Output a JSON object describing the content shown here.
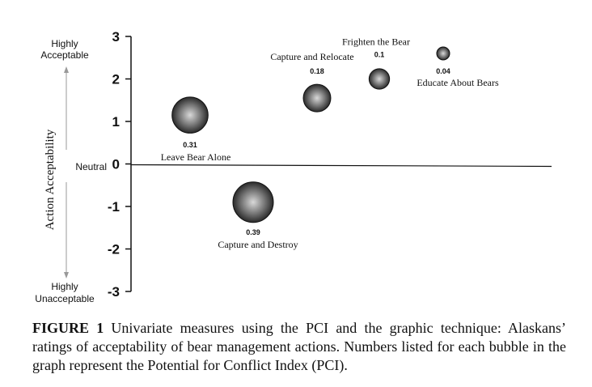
{
  "chart_data": {
    "type": "bubble",
    "title": "",
    "ylabel": "Action Acceptability",
    "ylim": [
      -3,
      3
    ],
    "yticks": [
      3,
      2,
      1,
      0,
      -1,
      -2,
      -3
    ],
    "ytick_labels": [
      "3",
      "2",
      "1",
      "0",
      "-1",
      "-2",
      "-3"
    ],
    "y_extremes": {
      "top_line1": "Highly",
      "top_line2": "Acceptable",
      "neutral": "Neutral",
      "bottom_line1": "Highly",
      "bottom_line2": "Unacceptable"
    },
    "points": [
      {
        "name": "Leave Bear Alone",
        "pci": 0.31,
        "pci_label": "0.31",
        "mean": 1.15
      },
      {
        "name": "Capture and Destroy",
        "pci": 0.39,
        "pci_label": "0.39",
        "mean": -0.9
      },
      {
        "name": "Capture and Relocate",
        "pci": 0.18,
        "pci_label": "0.18",
        "mean": 1.55
      },
      {
        "name": "Frighten the Bear",
        "pci": 0.1,
        "pci_label": "0.1",
        "mean": 2.0
      },
      {
        "name": "Educate About Bears",
        "pci": 0.04,
        "pci_label": "0.04",
        "mean": 2.6
      }
    ]
  },
  "caption": {
    "label": "FIGURE 1",
    "text": "Univariate measures using the PCI and the graphic technique: Alaskans’ ratings of acceptability of bear management actions. Numbers listed for each bubble in the graph represent the Potential for Conflict Index (PCI)."
  }
}
